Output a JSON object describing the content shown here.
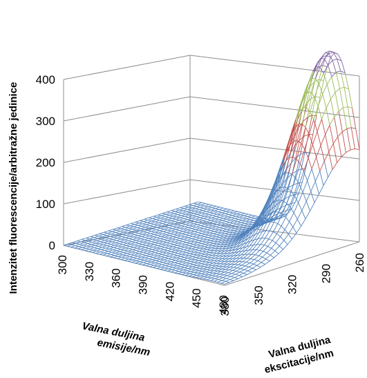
{
  "chart_data": {
    "type": "surface",
    "z_axis": {
      "label": "Intenzitet fluorescencije/arbitražne jedinice",
      "ticks": [
        "0",
        "100",
        "200",
        "300",
        "400"
      ],
      "range": [
        0,
        400
      ]
    },
    "x_axis": {
      "label_line1": "Valna duljina",
      "label_line2": "emisije/nm",
      "ticks": [
        "300",
        "330",
        "360",
        "390",
        "420",
        "450",
        "480"
      ],
      "range": [
        300,
        480
      ]
    },
    "y_axis": {
      "label_line1": "Valna duljina",
      "label_line2": "ekscitacije/nm",
      "ticks": [
        "380",
        "350",
        "320",
        "290",
        "260"
      ],
      "range": [
        260,
        380
      ]
    },
    "peak": {
      "emission_nm": 452,
      "excitation_nm": 265,
      "intensity": 420
    },
    "color_bands": [
      {
        "from": 0,
        "to": 100,
        "color": "#4f81bd"
      },
      {
        "from": 100,
        "to": 200,
        "color": "#4f81bd"
      },
      {
        "from": 200,
        "to": 300,
        "color": "#c0504d"
      },
      {
        "from": 300,
        "to": 400,
        "color": "#9bbb59"
      },
      {
        "from": 400,
        "to": 500,
        "color": "#8064a2"
      }
    ],
    "gridlines": true
  }
}
